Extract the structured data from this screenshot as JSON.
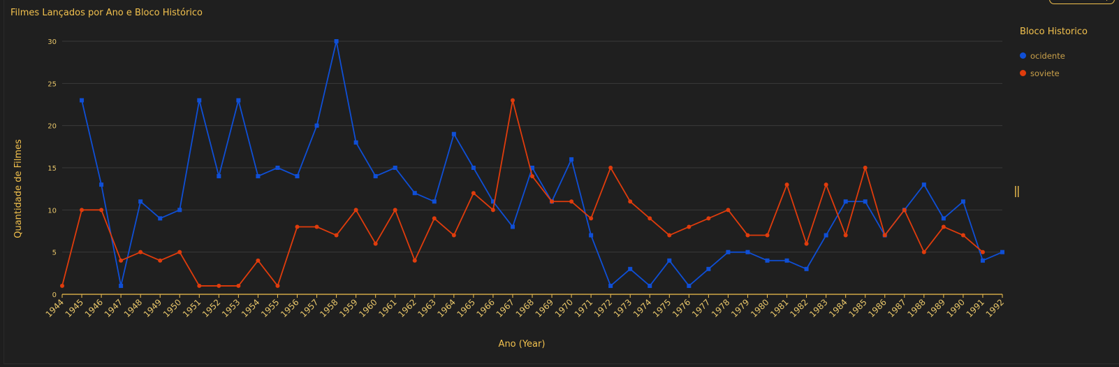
{
  "title": "Filmes Lançados por Ano e Bloco Histórico",
  "legend_title": "Bloco Historico",
  "chart_data": {
    "type": "line",
    "title": "Filmes Lançados por Ano e Bloco Histórico",
    "xlabel": "Ano (Year)",
    "ylabel": "Quantidade de Filmes",
    "ylim": [
      0,
      30
    ],
    "yticks": [
      0,
      5,
      10,
      15,
      20,
      25,
      30
    ],
    "grid": true,
    "legend_position": "right",
    "categories": [
      "1944",
      "1945",
      "1946",
      "1947",
      "1948",
      "1949",
      "1950",
      "1951",
      "1952",
      "1953",
      "1954",
      "1955",
      "1956",
      "1957",
      "1958",
      "1959",
      "1960",
      "1961",
      "1962",
      "1963",
      "1964",
      "1965",
      "1966",
      "1967",
      "1968",
      "1969",
      "1970",
      "1971",
      "1972",
      "1973",
      "1974",
      "1975",
      "1976",
      "1977",
      "1978",
      "1979",
      "1980",
      "1981",
      "1982",
      "1983",
      "1984",
      "1985",
      "1986",
      "1987",
      "1988",
      "1989",
      "1990",
      "1991",
      "1992"
    ],
    "series": [
      {
        "name": "ocidente",
        "color": "#0f4fd6",
        "marker": "square",
        "values": [
          null,
          23,
          13,
          1,
          11,
          9,
          10,
          23,
          14,
          23,
          14,
          15,
          14,
          20,
          30,
          18,
          14,
          15,
          12,
          11,
          19,
          15,
          11,
          8,
          15,
          11,
          16,
          7,
          1,
          3,
          1,
          4,
          1,
          3,
          5,
          5,
          4,
          4,
          3,
          7,
          11,
          11,
          7,
          10,
          13,
          9,
          11,
          4,
          5
        ]
      },
      {
        "name": "soviete",
        "color": "#e03c0c",
        "marker": "circle",
        "values": [
          1,
          10,
          10,
          4,
          5,
          4,
          5,
          1,
          1,
          1,
          4,
          1,
          8,
          8,
          7,
          10,
          6,
          10,
          4,
          9,
          7,
          12,
          10,
          23,
          14,
          11,
          11,
          9,
          15,
          11,
          9,
          7,
          8,
          9,
          10,
          7,
          7,
          13,
          6,
          13,
          7,
          15,
          7,
          10,
          5,
          8,
          7,
          5,
          null
        ]
      }
    ]
  },
  "colors": {
    "background": "#1f1f1f",
    "text_accent": "#f2c14e",
    "tick_text": "#e8c66a",
    "grid": "#3a3a3a"
  }
}
